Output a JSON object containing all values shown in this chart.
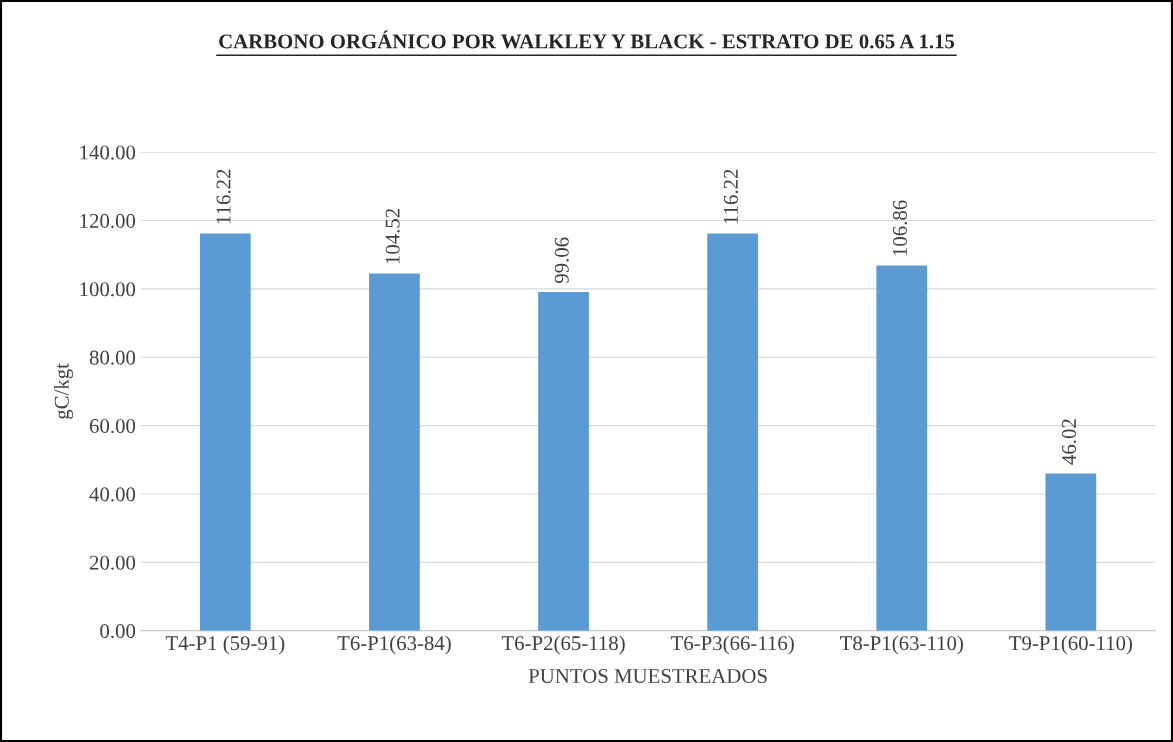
{
  "chart_data": {
    "type": "bar",
    "title": "CARBONO ORGÁNICO POR WALKLEY Y BLACK - ESTRATO DE 0.65 A 1.15",
    "xlabel": "PUNTOS MUESTREADOS",
    "ylabel": "gC/kgt",
    "categories": [
      "T4-P1 (59-91)",
      "T6-P1(63-84)",
      "T6-P2(65-118)",
      "T6-P3(66-116)",
      "T8-P1(63-110)",
      "T9-P1(60-110)"
    ],
    "values": [
      116.22,
      104.52,
      99.06,
      116.22,
      106.86,
      46.02
    ],
    "color": "#5b9bd5",
    "ylim": [
      0,
      140
    ],
    "yticks": [
      {
        "value": 0,
        "label": "0.00"
      },
      {
        "value": 20,
        "label": "20.00"
      },
      {
        "value": 40,
        "label": "40.00"
      },
      {
        "value": 60,
        "label": "60.00"
      },
      {
        "value": 80,
        "label": "80.00"
      },
      {
        "value": 100,
        "label": "100.00"
      },
      {
        "value": 120,
        "label": "120.00"
      },
      {
        "value": 140,
        "label": "140.00"
      }
    ],
    "grid": "y",
    "data_labels": true,
    "legend": false
  }
}
